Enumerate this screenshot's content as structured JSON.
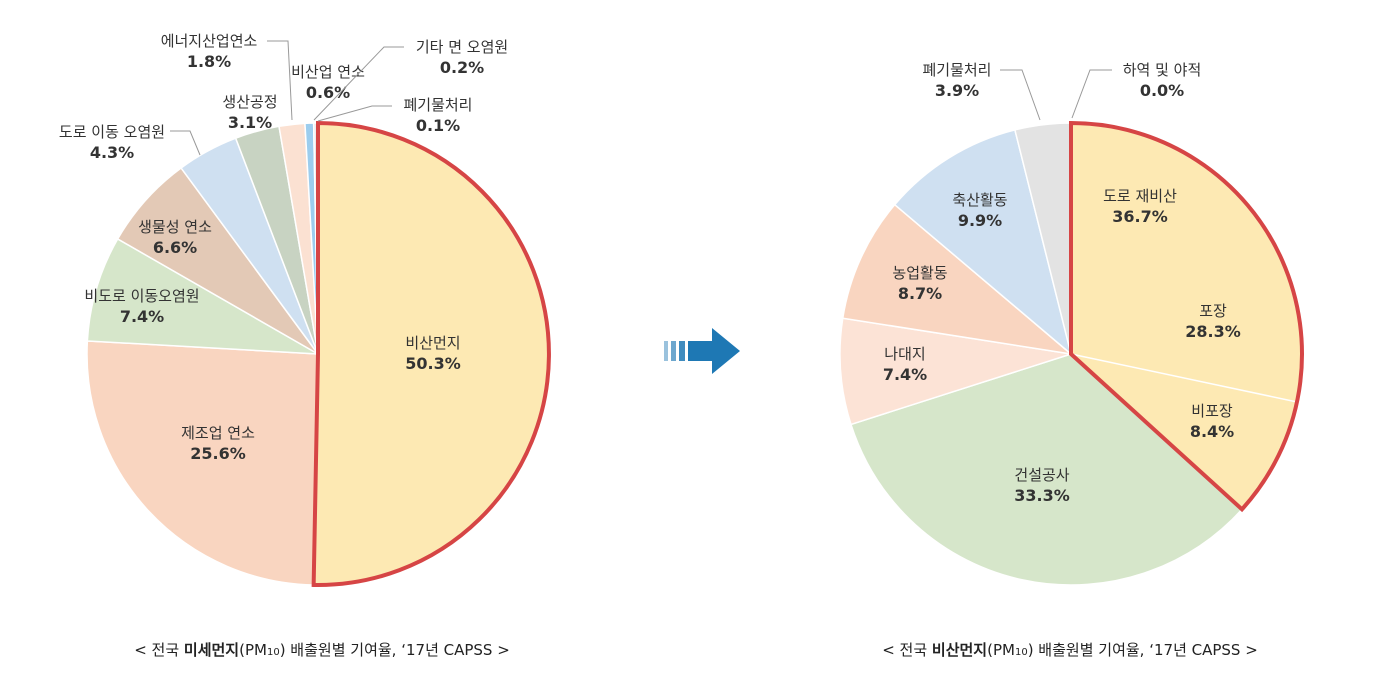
{
  "chart_data": [
    {
      "type": "pie",
      "slices": [
        {
          "label": "비산먼지",
          "value": 50.3,
          "pct_text": "50.3%",
          "color": "#FDE9B3",
          "highlight": true
        },
        {
          "label": "제조업 연소",
          "value": 25.6,
          "pct_text": "25.6%",
          "color": "#F9D5C0"
        },
        {
          "label": "비도로 이동오염원",
          "value": 7.4,
          "pct_text": "7.4%",
          "color": "#D6E6CA"
        },
        {
          "label": "생물성 연소",
          "value": 6.6,
          "pct_text": "6.6%",
          "color": "#E3C9B6"
        },
        {
          "label": "도로 이동 오염원",
          "value": 4.3,
          "pct_text": "4.3%",
          "color": "#CFE0F1"
        },
        {
          "label": "생산공정",
          "value": 3.1,
          "pct_text": "3.1%",
          "color": "#C8D3C2"
        },
        {
          "label": "에너지산업연소",
          "value": 1.8,
          "pct_text": "1.8%",
          "color": "#FBE1D2"
        },
        {
          "label": "비산업 연소",
          "value": 0.6,
          "pct_text": "0.6%",
          "color": "#9CCDEE"
        },
        {
          "label": "기타 면 오염원",
          "value": 0.2,
          "pct_text": "0.2%",
          "color": "#E8E8E8"
        },
        {
          "label": "폐기물처리",
          "value": 0.1,
          "pct_text": "0.1%",
          "color": "#FFFFFF"
        }
      ],
      "caption": {
        "pre": "< 전국 ",
        "bold": "미세먼지",
        "mid": "(PM",
        "sub": "10",
        "post": ") 배출원별 기여율, ‘17년 CAPSS >"
      }
    },
    {
      "type": "pie",
      "slices": [
        {
          "label": "도로 재비산",
          "value": 36.7,
          "pct_text": "36.7%",
          "color": "#FDE9B3",
          "highlight": true,
          "children": [
            {
              "label": "포장",
              "value": 28.3,
              "pct_text": "28.3%"
            },
            {
              "label": "비포장",
              "value": 8.4,
              "pct_text": "8.4%"
            }
          ]
        },
        {
          "label": "건설공사",
          "value": 33.3,
          "pct_text": "33.3%",
          "color": "#D6E6CA"
        },
        {
          "label": "나대지",
          "value": 7.4,
          "pct_text": "7.4%",
          "color": "#FCE3D6"
        },
        {
          "label": "농업활동",
          "value": 8.7,
          "pct_text": "8.7%",
          "color": "#F9D5C0"
        },
        {
          "label": "축산활동",
          "value": 9.9,
          "pct_text": "9.9%",
          "color": "#CFE0F1"
        },
        {
          "label": "폐기물처리",
          "value": 3.9,
          "pct_text": "3.9%",
          "color": "#E3E3E3"
        },
        {
          "label": "하역 및 야적",
          "value": 0.0,
          "pct_text": "0.0%",
          "color": "#D0D0D0"
        }
      ],
      "caption": {
        "pre": "< 전국 ",
        "bold": "비산먼지",
        "mid": "(PM",
        "sub": "10",
        "post": ") 배출원별 기여율, ‘17년 CAPSS >"
      }
    }
  ],
  "arrow": {
    "color": "#1E78B4"
  }
}
